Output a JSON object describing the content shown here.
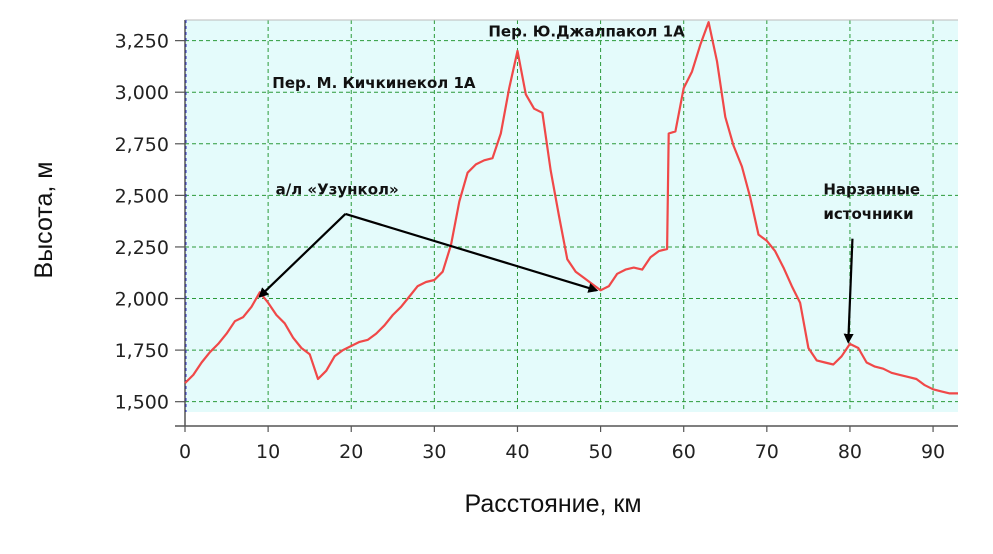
{
  "chart_data": {
    "type": "line",
    "xlabel": "Расстояние, км",
    "ylabel": "Высота, м",
    "xlim": [
      0,
      93
    ],
    "ylim": [
      1450,
      3350
    ],
    "x_ticks": [
      0,
      10,
      20,
      30,
      40,
      50,
      60,
      70,
      80,
      90
    ],
    "y_ticks": [
      1500,
      1750,
      2000,
      2250,
      2500,
      2750,
      3000,
      3250
    ],
    "y_tick_labels": [
      "1,500",
      "1,750",
      "2,000",
      "2,250",
      "2,500",
      "2,750",
      "3,000",
      "3,250"
    ],
    "grid": true,
    "line_color": "#f04848",
    "plot_background": "#e4fbfb",
    "grid_color": "#2b9a3a",
    "series": [
      {
        "x": [
          0,
          1,
          2,
          3,
          4,
          5,
          6,
          7,
          8,
          9,
          10,
          11,
          12,
          13,
          14,
          15,
          16,
          17,
          18,
          19,
          20,
          21,
          22,
          23,
          24,
          25,
          26,
          27,
          28,
          29,
          30,
          31,
          32,
          33,
          34,
          35,
          36,
          37,
          38,
          39,
          40,
          41,
          42,
          43,
          44,
          45,
          46,
          47,
          48,
          49,
          50,
          51,
          52,
          53,
          54,
          55,
          56,
          57,
          58,
          58.2,
          59,
          60,
          61,
          62,
          63,
          64,
          65,
          66,
          67,
          68,
          69,
          70,
          71,
          72,
          73,
          74,
          75,
          76,
          77,
          78,
          79,
          80,
          81,
          82,
          83,
          84,
          85,
          86,
          87,
          88,
          89,
          90,
          91,
          92,
          93
        ],
        "values": [
          1590,
          1630,
          1690,
          1740,
          1780,
          1830,
          1890,
          1910,
          1960,
          2030,
          1980,
          1920,
          1880,
          1810,
          1760,
          1730,
          1610,
          1650,
          1720,
          1750,
          1770,
          1790,
          1800,
          1830,
          1870,
          1920,
          1960,
          2010,
          2060,
          2080,
          2090,
          2130,
          2260,
          2470,
          2610,
          2650,
          2670,
          2680,
          2800,
          3020,
          3200,
          2990,
          2920,
          2900,
          2620,
          2400,
          2190,
          2130,
          2100,
          2070,
          2040,
          2060,
          2120,
          2140,
          2150,
          2140,
          2200,
          2230,
          2240,
          2800,
          2810,
          3020,
          3100,
          3230,
          3340,
          3150,
          2880,
          2740,
          2640,
          2490,
          2310,
          2280,
          2230,
          2150,
          2060,
          1980,
          1760,
          1700,
          1690,
          1680,
          1720,
          1780,
          1760,
          1690,
          1670,
          1660,
          1640,
          1630,
          1620,
          1610,
          1580,
          1560,
          1550,
          1540,
          1540
        ]
      }
    ],
    "annotations": [
      {
        "text": "Пер. М. Кичкинекол 1А",
        "x": 10.5,
        "y": 3020
      },
      {
        "text": "Пер. Ю.Джалпакол 1А",
        "x": 36.5,
        "y": 3270
      },
      {
        "text": "а/л «Узункол»",
        "x": 10.9,
        "y": 2505
      },
      {
        "text": "Нарзанные",
        "x": 76.8,
        "y": 2505
      },
      {
        "text": "источники",
        "x": 76.8,
        "y": 2385
      }
    ],
    "arrows": [
      {
        "from": [
          19.3,
          2410
        ],
        "to": [
          9,
          2010
        ]
      },
      {
        "from": [
          19.3,
          2410
        ],
        "to": [
          49.5,
          2040
        ]
      },
      {
        "from": [
          80.3,
          2290
        ],
        "to": [
          79.8,
          1790
        ]
      }
    ]
  }
}
